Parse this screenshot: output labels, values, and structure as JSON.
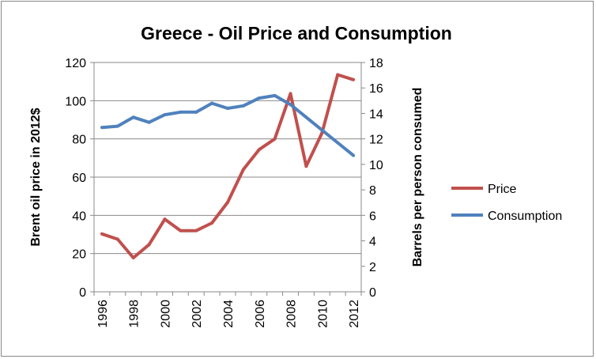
{
  "chart_data": {
    "type": "line",
    "title": "Greece - Oil Price and Consumption",
    "xlabel": "",
    "ylabel": "Brent oil price in 2012$",
    "y2label": "Barrels per person consumed",
    "x": [
      1996,
      1997,
      1998,
      1999,
      2000,
      2001,
      2002,
      2003,
      2004,
      2005,
      2006,
      2007,
      2008,
      2009,
      2010,
      2011,
      2012
    ],
    "x_tick_labels": [
      "1996",
      "1998",
      "2000",
      "2002",
      "2004",
      "2006",
      "2008",
      "2010",
      "2012"
    ],
    "ylim": [
      0,
      120
    ],
    "y_ticks": [
      "0",
      "20",
      "40",
      "60",
      "80",
      "100",
      "120"
    ],
    "y2lim": [
      0,
      18
    ],
    "y2_ticks": [
      "0",
      "2",
      "4",
      "6",
      "8",
      "10",
      "12",
      "14",
      "16",
      "18"
    ],
    "grid": true,
    "legend_position": "right",
    "series": [
      {
        "name": "Price",
        "axis": "left",
        "color": "#c0504d",
        "values": [
          30.3,
          27.5,
          17.8,
          24.7,
          38,
          32,
          32,
          36,
          46.8,
          64,
          74.4,
          80,
          103.7,
          65.7,
          83,
          113.6,
          111
        ]
      },
      {
        "name": "Consumption",
        "axis": "right",
        "color": "#4f81bd",
        "values": [
          12.9,
          13.0,
          13.7,
          13.3,
          13.9,
          14.1,
          14.1,
          14.8,
          14.4,
          14.6,
          15.2,
          15.4,
          14.7,
          13.7,
          12.7,
          11.7,
          10.7
        ]
      }
    ]
  }
}
